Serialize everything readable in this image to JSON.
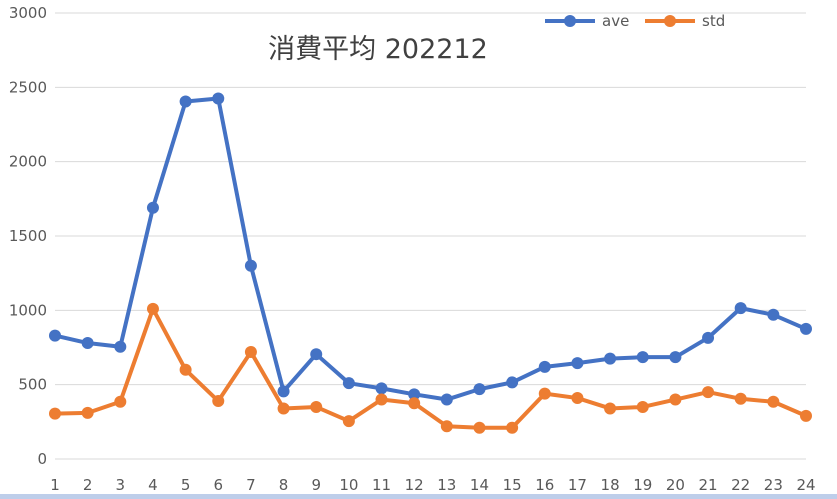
{
  "chart_data": {
    "type": "line",
    "title": "消費平均 202212",
    "xlabel": "",
    "ylabel": "",
    "categories": [
      "1",
      "2",
      "3",
      "4",
      "5",
      "6",
      "7",
      "8",
      "9",
      "10",
      "11",
      "12",
      "13",
      "14",
      "15",
      "16",
      "17",
      "18",
      "19",
      "20",
      "21",
      "22",
      "23",
      "24"
    ],
    "ylim": [
      0,
      3000
    ],
    "yticks": [
      "0",
      "500",
      "1000",
      "1500",
      "2000",
      "2500",
      "3000"
    ],
    "grid": true,
    "legend_position": "top-right",
    "series": [
      {
        "name": "ave",
        "color": "#4472c4",
        "values": [
          830,
          780,
          755,
          1690,
          2405,
          2425,
          1300,
          455,
          705,
          510,
          475,
          435,
          400,
          470,
          515,
          620,
          645,
          675,
          685,
          685,
          815,
          1015,
          970,
          875
        ]
      },
      {
        "name": "std",
        "color": "#ed7d31",
        "values": [
          305,
          310,
          385,
          1010,
          600,
          390,
          720,
          340,
          350,
          255,
          400,
          375,
          220,
          210,
          210,
          440,
          410,
          340,
          350,
          400,
          450,
          405,
          385,
          290
        ]
      }
    ]
  }
}
